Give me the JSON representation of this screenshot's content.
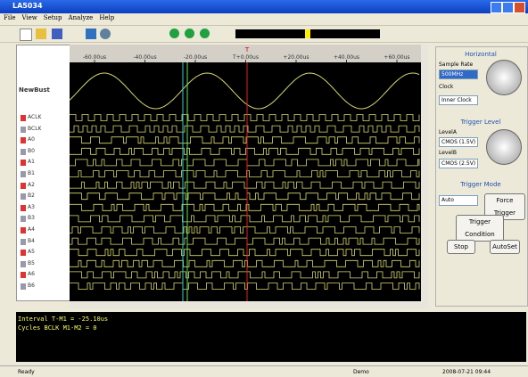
{
  "window": {
    "title": "LA5034",
    "menu": [
      "File",
      "View",
      "Setup",
      "Analyze",
      "Help"
    ]
  },
  "ruler": [
    "-60.00us",
    "-40.00us",
    "-20.00us",
    "T+0.00us",
    "+20.00us",
    "+40.00us",
    "+60.00us"
  ],
  "cursor_label": "T",
  "channels": {
    "group": "NewBust",
    "names": [
      "ACLK",
      "BCLK",
      "A0",
      "B0",
      "A1",
      "B1",
      "A2",
      "B2",
      "A3",
      "B3",
      "A4",
      "B4",
      "A5",
      "B5",
      "A6",
      "B6"
    ]
  },
  "panel": {
    "horizontal": "Horizontal",
    "sample_rate": "Sample Rate",
    "rate_value": "500MHz",
    "clock": "Clock",
    "clock_value": "Inner Clock",
    "trigger_level": "Trigger Level",
    "level_a": "LevelA",
    "level_a_value": "CMOS (1.5V)",
    "level_b": "LevelB",
    "level_b_value": "CMOS (2.5V)",
    "trigger_mode": "Trigger Mode",
    "mode_value": "Auto",
    "force": "Force Trigger",
    "condition": "Trigger Condition",
    "stop": "Stop",
    "autoset": "AutoSet"
  },
  "output": [
    "Interval T-M1 = -25.10us",
    "Cycles BCLK M1-M2 = 0"
  ],
  "status": [
    "Ready",
    "Demo",
    "2008-07-21  09:44"
  ]
}
